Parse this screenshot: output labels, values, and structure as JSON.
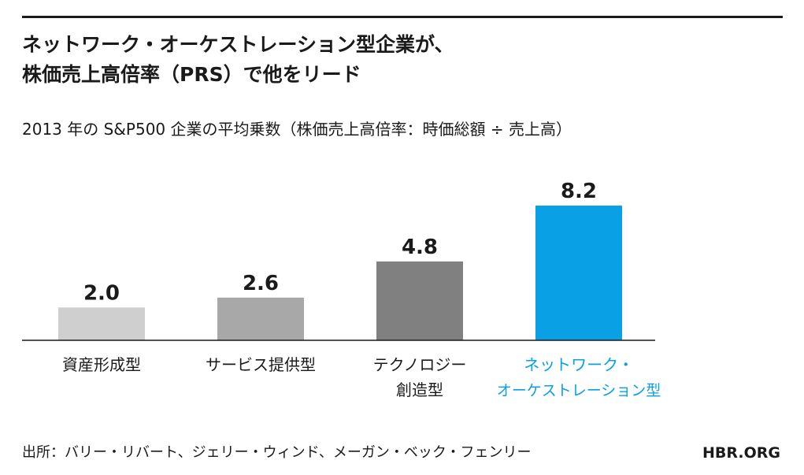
{
  "header": {
    "title_line1": "ネットワーク・オーケストレーション型企業が、",
    "title_line2": "株価売上高倍率（PRS）で他をリード",
    "subtitle": "2013 年の S&P500 企業の平均乗数（株価売上高倍率：時価総額 ÷ 売上高）"
  },
  "chart_data": {
    "type": "bar",
    "categories": [
      [
        "資産形成型"
      ],
      [
        "サービス提供型"
      ],
      [
        "テクノロジー",
        "創造型"
      ],
      [
        "ネットワーク・",
        "オーケストレーション型"
      ]
    ],
    "values": [
      2.0,
      2.6,
      4.8,
      8.2
    ],
    "value_labels": [
      "2.0",
      "2.6",
      "4.8",
      "8.2"
    ],
    "ylim": [
      0,
      8.2
    ],
    "grid": false,
    "colors": [
      "#cfcfcf",
      "#a8a8a8",
      "#808080",
      "#0aa0e6"
    ],
    "category_label_colors": [
      "#1a1a1a",
      "#1a1a1a",
      "#1a1a1a",
      "#0aa0e6"
    ]
  },
  "footer": {
    "source": "出所：バリー・リバート、ジェリー・ウィンド、メーガン・ベック・フェンリー",
    "brand": "HBR.ORG"
  }
}
